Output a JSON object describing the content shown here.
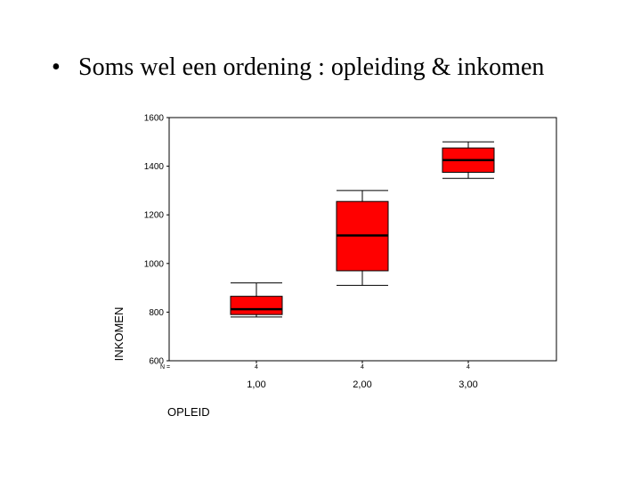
{
  "slide": {
    "bullet": "•",
    "title": "Soms wel een ordening : opleiding & inkomen"
  },
  "chart_data": {
    "type": "boxplot",
    "title": "",
    "xlabel": "OPLEID",
    "ylabel": "INKOMEN",
    "ylim": [
      600,
      1600
    ],
    "yticks": [
      600,
      800,
      1000,
      1200,
      1400,
      1600
    ],
    "grid": false,
    "n_label": "N =",
    "categories": [
      "1,00",
      "2,00",
      "3,00"
    ],
    "n": [
      "4",
      "4",
      "4"
    ],
    "boxes": [
      {
        "category": "1,00",
        "min": 780,
        "q1": 790,
        "median": 812,
        "q3": 865,
        "max": 920
      },
      {
        "category": "2,00",
        "min": 910,
        "q1": 970,
        "median": 1115,
        "q3": 1255,
        "max": 1300
      },
      {
        "category": "3,00",
        "min": 1350,
        "q1": 1375,
        "median": 1425,
        "q3": 1475,
        "max": 1500
      }
    ],
    "box_color": "#ff0000"
  }
}
